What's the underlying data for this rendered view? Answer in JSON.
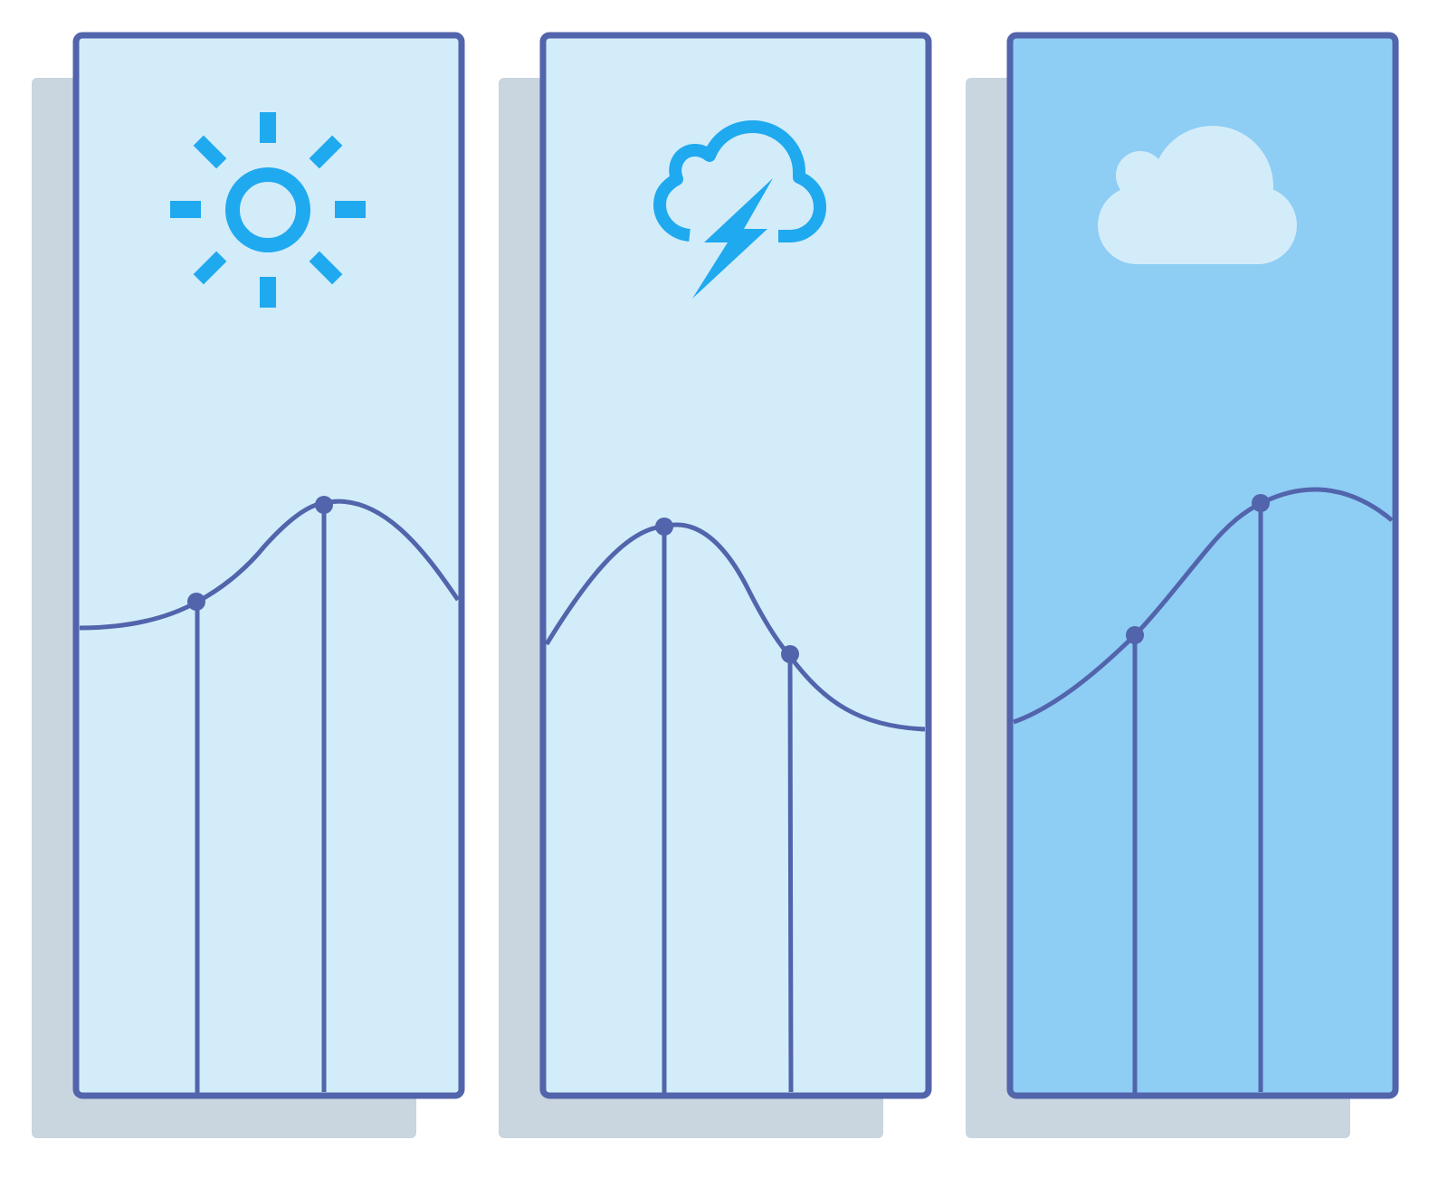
{
  "colors": {
    "background": "#ffffff",
    "shadow": "#c9d5df",
    "frame": "#5264ab",
    "panel_light": "#d3ecfa",
    "panel_medium": "#8ecdf4",
    "icon_blue": "#1fa9ef",
    "cloud_fill": "#d3ecfa",
    "curve": "#5264ab"
  },
  "panels": [
    {
      "name": "sunny-panel",
      "fill": "panel_light",
      "icon": "sun-icon",
      "marker_count": 2
    },
    {
      "name": "storm-panel",
      "fill": "panel_light",
      "icon": "thunderstorm-icon",
      "marker_count": 2
    },
    {
      "name": "cloudy-panel",
      "fill": "panel_medium",
      "icon": "cloud-icon",
      "marker_count": 2
    }
  ]
}
